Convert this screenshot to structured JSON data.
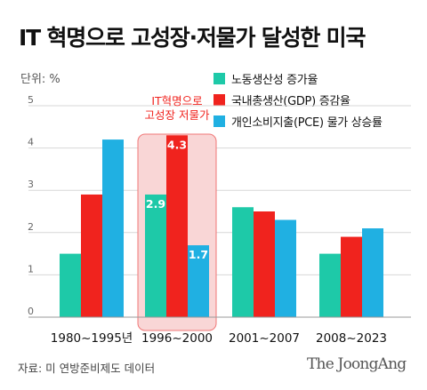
{
  "header": {
    "title": "IT 혁명으로 고성장·저물가 달성한 미국"
  },
  "unit_label": "단위: %",
  "source": "자료: 미 연방준비제도 데이터",
  "brand": "The JoongAng",
  "highlight": {
    "line1": "IT혁명으로",
    "line2": "고성장 저물가",
    "category_index": 1
  },
  "colors": {
    "productivity": "#1ec9a8",
    "gdp": "#f0231e",
    "pce": "#20b0e2",
    "highlight_fill": "#f9d6d6",
    "highlight_stroke": "#f07777",
    "highlight_text": "#f0231e"
  },
  "chart_data": {
    "type": "bar",
    "categories": [
      "1980~1995년",
      "1996~2000",
      "2001~2007",
      "2008~2023"
    ],
    "series": [
      {
        "name": "노동생산성 증가율",
        "values": [
          1.5,
          2.9,
          2.6,
          1.5
        ]
      },
      {
        "name": "국내총생산(GDP) 증감율",
        "values": [
          2.9,
          4.3,
          2.5,
          1.9
        ]
      },
      {
        "name": "개인소비지출(PCE) 물가 상승률",
        "values": [
          4.2,
          1.7,
          2.3,
          2.1
        ]
      }
    ],
    "data_labels": [
      {
        "series": 0,
        "category": 1,
        "text": "2.9"
      },
      {
        "series": 1,
        "category": 1,
        "text": "4.3"
      },
      {
        "series": 2,
        "category": 1,
        "text": "1.7"
      }
    ],
    "ylim": [
      0,
      5
    ],
    "yticks": [
      "0",
      "1",
      "2",
      "3",
      "4",
      "5"
    ],
    "grid": true
  }
}
